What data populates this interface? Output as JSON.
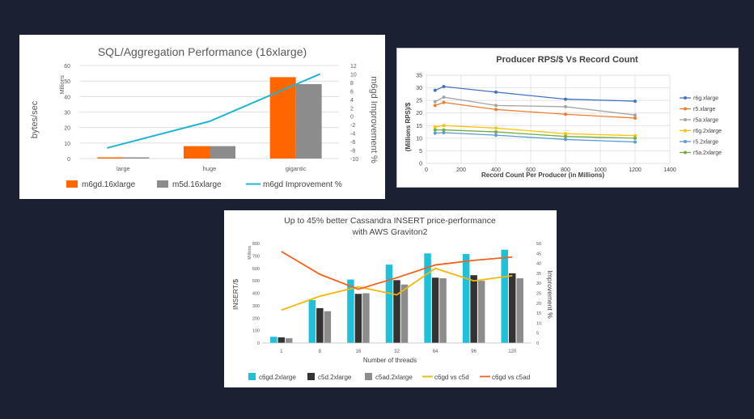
{
  "chart_data": [
    {
      "type": "bar",
      "title": "SQL/Aggregation Performance (16xlarge)",
      "ylabel": "bytes/sec",
      "yunit": "Millions",
      "y2label": "m6gd Improvement %",
      "categories": [
        "large",
        "huge",
        "gigantic"
      ],
      "ylim": [
        0,
        60
      ],
      "yticks": [
        0,
        10,
        20,
        30,
        40,
        50,
        60
      ],
      "y2lim": [
        -10,
        12
      ],
      "y2ticks": [
        -10,
        -8,
        -6,
        -4,
        -2,
        0,
        2,
        4,
        6,
        8,
        10,
        12
      ],
      "grid": true,
      "legend_position": "bottom",
      "series": [
        {
          "name": "m6gd.16xlarge",
          "kind": "bar",
          "color": "#ff6600",
          "values": [
            0.6,
            8,
            52.5
          ]
        },
        {
          "name": "m5d.16xlarge",
          "kind": "bar",
          "color": "#8c8c8c",
          "values": [
            0.6,
            8,
            48
          ]
        },
        {
          "name": "m6gd Improvement %",
          "kind": "line",
          "axis": "right",
          "color": "#1fb5d0",
          "values": [
            -7.5,
            -1.2,
            10
          ]
        }
      ]
    },
    {
      "type": "line",
      "title": "Producer RPS/$ Vs Record Count",
      "xlabel": "Record Count Per Producer (in Millions)",
      "ylabel": "(Millions RPS)/$",
      "xlim": [
        0,
        1400
      ],
      "xticks": [
        0,
        200,
        400,
        600,
        800,
        1000,
        1200,
        1400
      ],
      "ylim": [
        0,
        35
      ],
      "yticks": [
        0,
        5,
        10,
        15,
        20,
        25,
        30,
        35
      ],
      "x": [
        50,
        100,
        400,
        800,
        1200
      ],
      "grid": true,
      "legend_position": "right",
      "series": [
        {
          "name": "r6g.xlarge",
          "color": "#4472c4",
          "values": [
            29,
            30.5,
            28.3,
            25.5,
            24.7
          ]
        },
        {
          "name": "r5.xlarge",
          "color": "#ed7d31",
          "values": [
            23,
            24.2,
            21.4,
            19.5,
            18
          ]
        },
        {
          "name": "r5a.xlarge",
          "color": "#a5a5a5",
          "values": [
            24.5,
            26.3,
            23,
            22.5,
            19.2
          ]
        },
        {
          "name": "r6g.2xlarge",
          "color": "#ffc000",
          "values": [
            14.5,
            15,
            14,
            11.8,
            11
          ]
        },
        {
          "name": "r5.2xlarge",
          "color": "#5b9bd5",
          "values": [
            12,
            12.2,
            11.2,
            9.5,
            8.5
          ]
        },
        {
          "name": "r5a.2xlarge",
          "color": "#70ad47",
          "values": [
            13.3,
            13.3,
            12.5,
            10.7,
            10
          ]
        }
      ]
    },
    {
      "type": "bar",
      "title": "Up to 45% better Cassandra INSERT price-performance",
      "subtitle": "with AWS Graviton2",
      "xlabel": "Number of threads",
      "ylabel": "INSERT/$",
      "yunit": "Millions",
      "y2label": "Improvement %",
      "categories": [
        "1",
        "8",
        "16",
        "32",
        "64",
        "96",
        "120"
      ],
      "ylim": [
        0,
        800
      ],
      "yticks": [
        0,
        100,
        200,
        300,
        400,
        500,
        600,
        700,
        800
      ],
      "y2lim": [
        0,
        50
      ],
      "y2ticks": [
        0,
        5,
        10,
        15,
        20,
        25,
        30,
        35,
        40,
        45,
        50
      ],
      "grid": false,
      "legend_position": "bottom",
      "series": [
        {
          "name": "c6gd.2xlarge",
          "kind": "bar",
          "color": "#1fc1d9",
          "values": [
            50,
            345,
            510,
            630,
            720,
            715,
            750
          ]
        },
        {
          "name": "c5d.2xlarge",
          "kind": "bar",
          "color": "#333333",
          "values": [
            45,
            280,
            395,
            505,
            525,
            545,
            560
          ]
        },
        {
          "name": "c5ad.2xlarge",
          "kind": "bar",
          "color": "#8c8c8c",
          "values": [
            38,
            255,
            400,
            470,
            520,
            500,
            520
          ]
        },
        {
          "name": "c6gd vs c5d",
          "kind": "line",
          "axis": "right",
          "color": "#f2b705",
          "values": [
            16.5,
            23.5,
            28.2,
            24.2,
            37.5,
            31.2,
            33.8
          ]
        },
        {
          "name": "c6gd vs c5ad",
          "kind": "line",
          "axis": "right",
          "color": "#f0621e",
          "values": [
            46,
            34.5,
            27,
            32.8,
            39.2,
            41.5,
            43.2
          ]
        }
      ]
    }
  ]
}
